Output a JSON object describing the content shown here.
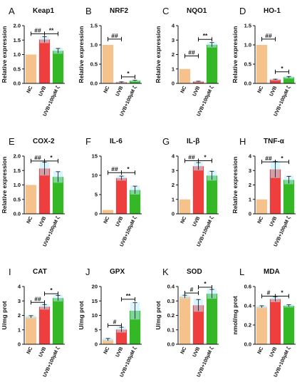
{
  "chart_data": [
    {
      "panel": "A",
      "title": "Keap1",
      "type": "bar",
      "categories": [
        "NC",
        "UVB",
        "UVB+100μM ζ"
      ],
      "values": [
        1.0,
        1.52,
        1.13
      ],
      "errors": [
        0.0,
        0.1,
        0.08
      ],
      "ylabel": "Relative expression",
      "ylim": [
        0,
        2.0
      ],
      "yticks": [
        "0.0",
        "0.5",
        "1.0",
        "1.5",
        "2.0"
      ],
      "annotations": [
        {
          "from": 0,
          "to": 1,
          "label": "##",
          "y": 1.72
        },
        {
          "from": 1,
          "to": 2,
          "label": "**",
          "y": 1.72
        }
      ]
    },
    {
      "panel": "B",
      "title": "NRF2",
      "type": "bar",
      "categories": [
        "NC",
        "UVB",
        "UVB+100μM ζ"
      ],
      "values": [
        1.0,
        0.03,
        0.07
      ],
      "errors": [
        0.0,
        0.01,
        0.01
      ],
      "ylabel": "Relative expression",
      "ylim": [
        0,
        1.5
      ],
      "yticks": [
        "0.0",
        "0.5",
        "1.0",
        "1.5"
      ],
      "annotations": [
        {
          "from": 0,
          "to": 1,
          "label": "##",
          "y": 1.15
        },
        {
          "from": 1,
          "to": 2,
          "label": "*",
          "y": 0.17
        }
      ]
    },
    {
      "panel": "C",
      "title": "NQO1",
      "type": "bar",
      "categories": [
        "NC",
        "UVB",
        "UVB+100μM ζ"
      ],
      "values": [
        1.0,
        0.13,
        2.68
      ],
      "errors": [
        0.0,
        0.02,
        0.15
      ],
      "ylabel": "Relative expression",
      "ylim": [
        0,
        4
      ],
      "yticks": [
        "0",
        "1",
        "2",
        "3",
        "4"
      ],
      "annotations": [
        {
          "from": 0,
          "to": 1,
          "label": "##",
          "y": 1.9
        },
        {
          "from": 1,
          "to": 2,
          "label": "**",
          "y": 3.05
        }
      ]
    },
    {
      "panel": "D",
      "title": "HO-1",
      "type": "bar",
      "categories": [
        "NC",
        "UVB",
        "UVB+100μM ζ"
      ],
      "values": [
        1.0,
        0.1,
        0.16
      ],
      "errors": [
        0.0,
        0.01,
        0.02
      ],
      "ylabel": "Relative expression",
      "ylim": [
        0,
        1.5
      ],
      "yticks": [
        "0.0",
        "0.5",
        "1.0",
        "1.5"
      ],
      "annotations": [
        {
          "from": 0,
          "to": 1,
          "label": "##",
          "y": 1.15
        },
        {
          "from": 1,
          "to": 2,
          "label": "*",
          "y": 0.3
        }
      ]
    },
    {
      "panel": "E",
      "title": "COX-2",
      "type": "bar",
      "categories": [
        "NC",
        "UVB",
        "UVB+100μM ζ"
      ],
      "values": [
        1.0,
        1.57,
        1.28
      ],
      "errors": [
        0.0,
        0.22,
        0.18
      ],
      "ylabel": "Relative expression",
      "ylim": [
        0,
        2.0
      ],
      "yticks": [
        "0.0",
        "0.5",
        "1.0",
        "1.5",
        "2.0"
      ],
      "annotations": [
        {
          "from": 0,
          "to": 1,
          "label": "##",
          "y": 1.83
        },
        {
          "from": 1,
          "to": 2,
          "label": "*",
          "y": 1.83
        }
      ]
    },
    {
      "panel": "F",
      "title": "IL-6",
      "type": "bar",
      "categories": [
        "NC",
        "UVB",
        "UVB+100μM ζ"
      ],
      "values": [
        1.0,
        9.3,
        6.2
      ],
      "errors": [
        0.0,
        0.5,
        1.0
      ],
      "ylabel": "",
      "ylim": [
        0,
        15
      ],
      "yticks": [
        "0",
        "5",
        "10",
        "15"
      ],
      "annotations": [
        {
          "from": 0,
          "to": 1,
          "label": "##",
          "y": 10.7
        },
        {
          "from": 1,
          "to": 2,
          "label": "*",
          "y": 10.7
        }
      ]
    },
    {
      "panel": "G",
      "title": "IL-β",
      "type": "bar",
      "categories": [
        "NC",
        "UVB",
        "UVB+100μM ζ"
      ],
      "values": [
        1.0,
        3.3,
        2.65
      ],
      "errors": [
        0.0,
        0.25,
        0.3
      ],
      "ylabel": "",
      "ylim": [
        0,
        4
      ],
      "yticks": [
        "0",
        "1",
        "2",
        "3",
        "4"
      ],
      "annotations": [
        {
          "from": 0,
          "to": 1,
          "label": "##",
          "y": 3.68
        },
        {
          "from": 1,
          "to": 2,
          "label": "*",
          "y": 3.68
        }
      ]
    },
    {
      "panel": "H",
      "title": "TNF-α",
      "type": "bar",
      "categories": [
        "NC",
        "UVB",
        "UVB+100μM ζ"
      ],
      "values": [
        1.0,
        3.08,
        2.35
      ],
      "errors": [
        0.0,
        0.55,
        0.25
      ],
      "ylabel": "Relative expression",
      "ylim": [
        0,
        4
      ],
      "yticks": [
        "0",
        "1",
        "2",
        "3",
        "4"
      ],
      "annotations": [
        {
          "from": 0,
          "to": 1,
          "label": "##",
          "y": 3.6
        },
        {
          "from": 1,
          "to": 2,
          "label": "*",
          "y": 3.6
        }
      ]
    },
    {
      "panel": "I",
      "title": "CAT",
      "type": "bar",
      "categories": [
        "NC",
        "UVB",
        "UVB+100μM ζ"
      ],
      "values": [
        1.9,
        2.6,
        3.2
      ],
      "errors": [
        0.08,
        0.15,
        0.18
      ],
      "ylabel": "U/mg prot",
      "ylim": [
        0,
        4
      ],
      "yticks": [
        "0",
        "1",
        "2",
        "3",
        "4"
      ],
      "annotations": [
        {
          "from": 0,
          "to": 1,
          "label": "##",
          "y": 2.9
        },
        {
          "from": 1,
          "to": 2,
          "label": "*",
          "y": 3.5
        }
      ]
    },
    {
      "panel": "J",
      "title": "GPX",
      "type": "bar",
      "categories": [
        "NC",
        "UVB",
        "UVB+100μM ζ"
      ],
      "values": [
        1.6,
        5.1,
        11.6
      ],
      "errors": [
        0.4,
        0.8,
        2.8
      ],
      "ylabel": "U/mg prot",
      "ylim": [
        0,
        20
      ],
      "yticks": [
        "0",
        "5",
        "10",
        "15",
        "20"
      ],
      "annotations": [
        {
          "from": 0,
          "to": 1,
          "label": "#",
          "y": 6.5
        },
        {
          "from": 1,
          "to": 2,
          "label": "**",
          "y": 15.6
        }
      ]
    },
    {
      "panel": "K",
      "title": "SOD",
      "type": "bar",
      "categories": [
        "NC",
        "UVB",
        "UVB+100μM ζ"
      ],
      "values": [
        0.33,
        0.27,
        0.35
      ],
      "errors": [
        0.01,
        0.04,
        0.03
      ],
      "ylabel": "U/mg prot",
      "ylim": [
        0,
        0.4
      ],
      "yticks": [
        "0.0",
        "0.1",
        "0.2",
        "0.3",
        "0.4"
      ],
      "annotations": [
        {
          "from": 0,
          "to": 1,
          "label": "#",
          "y": 0.355
        },
        {
          "from": 1,
          "to": 2,
          "label": "*",
          "y": 0.395
        }
      ]
    },
    {
      "panel": "L",
      "title": "MDA",
      "type": "bar",
      "categories": [
        "NC",
        "UVB",
        "UVB+100μM ζ"
      ],
      "values": [
        0.39,
        0.47,
        0.4
      ],
      "errors": [
        0.01,
        0.025,
        0.01
      ],
      "ylabel": "nmol/mg prot",
      "ylim": [
        0,
        0.6
      ],
      "yticks": [
        "0.0",
        "0.2",
        "0.4",
        "0.6"
      ],
      "annotations": [
        {
          "from": 0,
          "to": 1,
          "label": "#",
          "y": 0.5
        },
        {
          "from": 1,
          "to": 2,
          "label": "*",
          "y": 0.5
        }
      ]
    }
  ],
  "colors": {
    "NC": "#f5c28c",
    "UVB": "#ef3e3e",
    "UVB+100μM ζ": "#34b825",
    "error_glow": "#b9ecff",
    "axis": "#111111"
  }
}
